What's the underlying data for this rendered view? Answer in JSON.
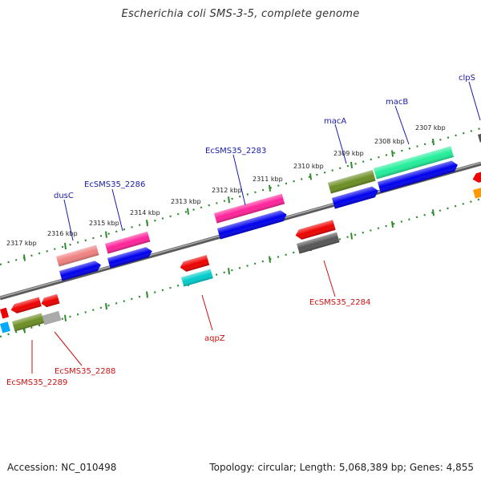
{
  "title": "Escherichia coli SMS-3-5, complete genome",
  "accession": "Accession: NC_010498",
  "summary": "Topology: circular; Length: 5,068,389 bp; Genes: 4,855",
  "colors": {
    "backbone": "#888888",
    "tick": "#2e8b2e",
    "forward_label": "#1a1aaa",
    "reverse_label": "#cc1111"
  },
  "ruler_labels": [
    "2307 kbp",
    "2308 kbp",
    "2309 kbp",
    "2310 kbp",
    "2311 kbp",
    "2312 kbp",
    "2313 kbp",
    "2314 kbp",
    "2315 kbp",
    "2316 kbp",
    "2317 kbp"
  ],
  "gene_labels_forward": [
    "clpS",
    "macB",
    "macA",
    "EcSMS35_2283",
    "EcSMS35_2286",
    "dusC"
  ],
  "gene_labels_reverse": [
    "EcSMS35_2284",
    "aqpZ",
    "EcSMS35_2288",
    "EcSMS35_2289"
  ]
}
